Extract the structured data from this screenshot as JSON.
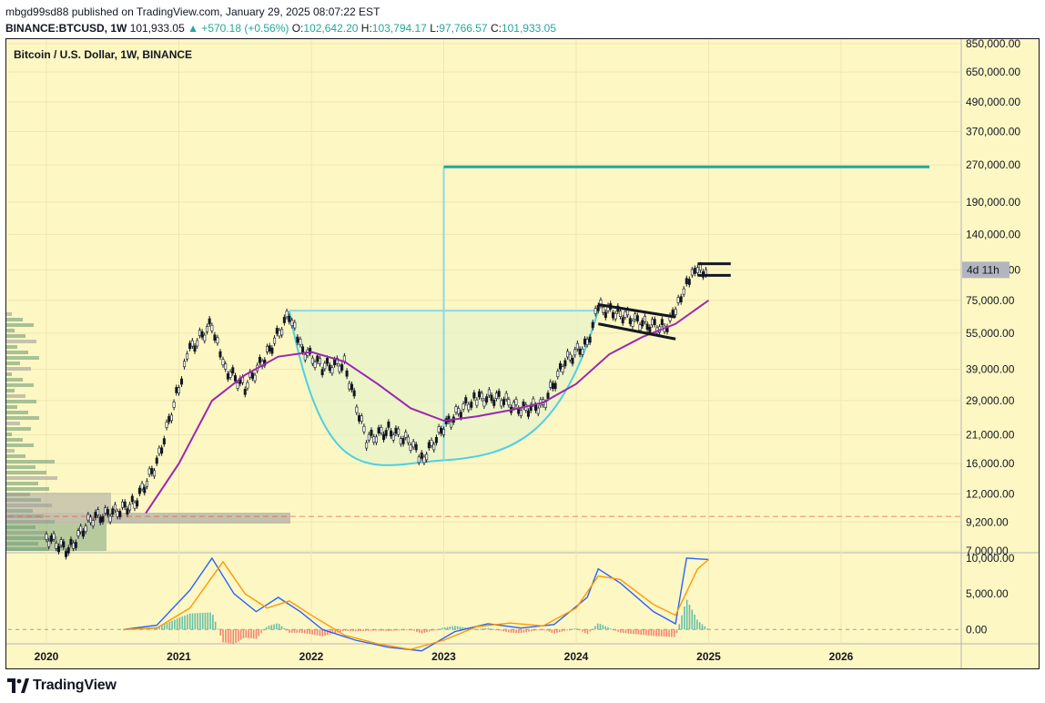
{
  "header": {
    "publisher_line": "mbgd99sd88 published on TradingView.com, January 29, 2025 08:07:22 EST",
    "symbol": "BINANCE:BTCUSD, 1W",
    "last": "101,933.05",
    "change": "▲ +570.18 (+0.56%)",
    "o_label": "O:",
    "o_value": "102,642.20",
    "h_label": "H:",
    "h_value": "103,794.17",
    "l_label": "L:",
    "l_value": "97,766.57",
    "c_label": "C:",
    "c_value": "101,933.05"
  },
  "footer": {
    "brand": "TradingView",
    "logo_icon": "tradingview-logo-icon"
  },
  "colors": {
    "background": "#fdf7c3",
    "up": "#26a69a",
    "down": "#ef5350",
    "ma": "#9c27b0",
    "cup_line": "#4dd0e1",
    "cup_fill": "#e7f3c9",
    "target_line": "#26a69a",
    "macd": "#2962ff",
    "signal": "#ff9800",
    "volume_profile": "#6f9d78",
    "volume_profile_alt": "#9e9e9e"
  },
  "chart_data": [
    {
      "type": "line",
      "title": "Bitcoin / U.S. Dollar, 1W, BINANCE",
      "xlabel": "",
      "ylabel": "",
      "y_scale": "log",
      "x_ticks": [
        "2020",
        "2021",
        "2022",
        "2023",
        "2024",
        "2025",
        "2026"
      ],
      "y_ticks": [
        "850,000.00",
        "650,000.00",
        "490,000.00",
        "370,000.00",
        "270,000.00",
        "190,000.00",
        "140,000.00",
        "100,000.00",
        "75,000.00",
        "55,000.00",
        "39,000.00",
        "29,000.00",
        "21,000.00",
        "16,000.00",
        "12,000.00",
        "9,200.00",
        "7,000.00"
      ],
      "countdown_label": "4d 11h",
      "ylim": [
        7000,
        850000
      ],
      "grid": true,
      "series": [
        {
          "kind": "price",
          "x": [
            "2020-01",
            "2020-03",
            "2020-05",
            "2020-07",
            "2020-09",
            "2020-11",
            "2021-01",
            "2021-02",
            "2021-04",
            "2021-05",
            "2021-07",
            "2021-09",
            "2021-11",
            "2021-12",
            "2022-02",
            "2022-04",
            "2022-06",
            "2022-08",
            "2022-10",
            "2022-11",
            "2023-01",
            "2023-03",
            "2023-04",
            "2023-06",
            "2023-08",
            "2023-10",
            "2023-12",
            "2024-02",
            "2024-03",
            "2024-05",
            "2024-07",
            "2024-09",
            "2024-10",
            "2024-11",
            "2024-12",
            "2025-01"
          ],
          "values": [
            8000,
            7000,
            9500,
            10000,
            11000,
            16000,
            33000,
            47000,
            60000,
            40000,
            33000,
            45000,
            66000,
            48000,
            40000,
            41000,
            20000,
            22000,
            19500,
            16500,
            22500,
            28000,
            29500,
            30000,
            26500,
            28000,
            42000,
            50000,
            70000,
            66000,
            60000,
            58000,
            66000,
            92000,
            97000,
            102000
          ]
        },
        {
          "kind": "moving_average",
          "x": [
            "2020-10",
            "2021-01",
            "2021-04",
            "2021-07",
            "2021-10",
            "2022-01",
            "2022-04",
            "2022-07",
            "2022-10",
            "2023-01",
            "2023-04",
            "2023-07",
            "2023-10",
            "2024-01",
            "2024-04",
            "2024-07",
            "2024-10",
            "2025-01"
          ],
          "values": [
            10000,
            16000,
            29000,
            37000,
            44000,
            46000,
            42000,
            34000,
            27000,
            24000,
            25000,
            26500,
            28500,
            34000,
            45000,
            53000,
            60000,
            75000
          ]
        }
      ],
      "annotations": [
        {
          "type": "cup",
          "left_rim": 68000,
          "bottom": 16500,
          "right_rim": 68000,
          "left_x": "2021-11",
          "bottom_x": "2023-01",
          "right_x": "2024-03"
        },
        {
          "type": "target_line",
          "value": 265000,
          "x_start": "2023-01",
          "x_end": "2026-09"
        },
        {
          "type": "flag",
          "top_start": 72000,
          "top_end": 64000,
          "bottom_start": 60000,
          "bottom_end": 52000,
          "x_start": "2024-03",
          "x_end": "2024-10"
        },
        {
          "type": "flag",
          "top_start": 106000,
          "top_end": 106000,
          "bottom_start": 95000,
          "bottom_end": 95000,
          "x_start": "2024-12",
          "x_end": "2025-03"
        },
        {
          "type": "horizontal_dashed",
          "value": 9700
        }
      ]
    },
    {
      "type": "line",
      "title": "",
      "y_ticks": [
        "10,000.00",
        "5,000.00",
        "0.00"
      ],
      "ylim": [
        -1500,
        10500
      ],
      "series": [
        {
          "kind": "macd",
          "x": [
            "2020-08",
            "2020-11",
            "2021-02",
            "2021-04",
            "2021-06",
            "2021-08",
            "2021-10",
            "2021-12",
            "2022-02",
            "2022-05",
            "2022-08",
            "2022-11",
            "2023-02",
            "2023-05",
            "2023-08",
            "2023-11",
            "2024-02",
            "2024-03",
            "2024-05",
            "2024-08",
            "2024-10",
            "2024-11",
            "2025-01"
          ],
          "values": [
            0,
            600,
            5500,
            10000,
            5000,
            2500,
            4500,
            2500,
            0,
            -1500,
            -2500,
            -3000,
            -300,
            800,
            200,
            700,
            4500,
            8500,
            6500,
            2500,
            800,
            10000,
            9800
          ]
        },
        {
          "kind": "signal",
          "x": [
            "2020-08",
            "2020-11",
            "2021-02",
            "2021-05",
            "2021-07",
            "2021-09",
            "2021-11",
            "2022-01",
            "2022-04",
            "2022-07",
            "2022-10",
            "2023-01",
            "2023-04",
            "2023-07",
            "2023-10",
            "2024-01",
            "2024-03",
            "2024-05",
            "2024-08",
            "2024-10",
            "2024-12",
            "2025-01"
          ],
          "values": [
            0,
            200,
            3000,
            9500,
            5000,
            3000,
            4000,
            2000,
            -800,
            -2000,
            -2800,
            -1500,
            400,
            900,
            500,
            3000,
            7500,
            7000,
            3500,
            2000,
            8500,
            9800
          ]
        }
      ]
    }
  ]
}
